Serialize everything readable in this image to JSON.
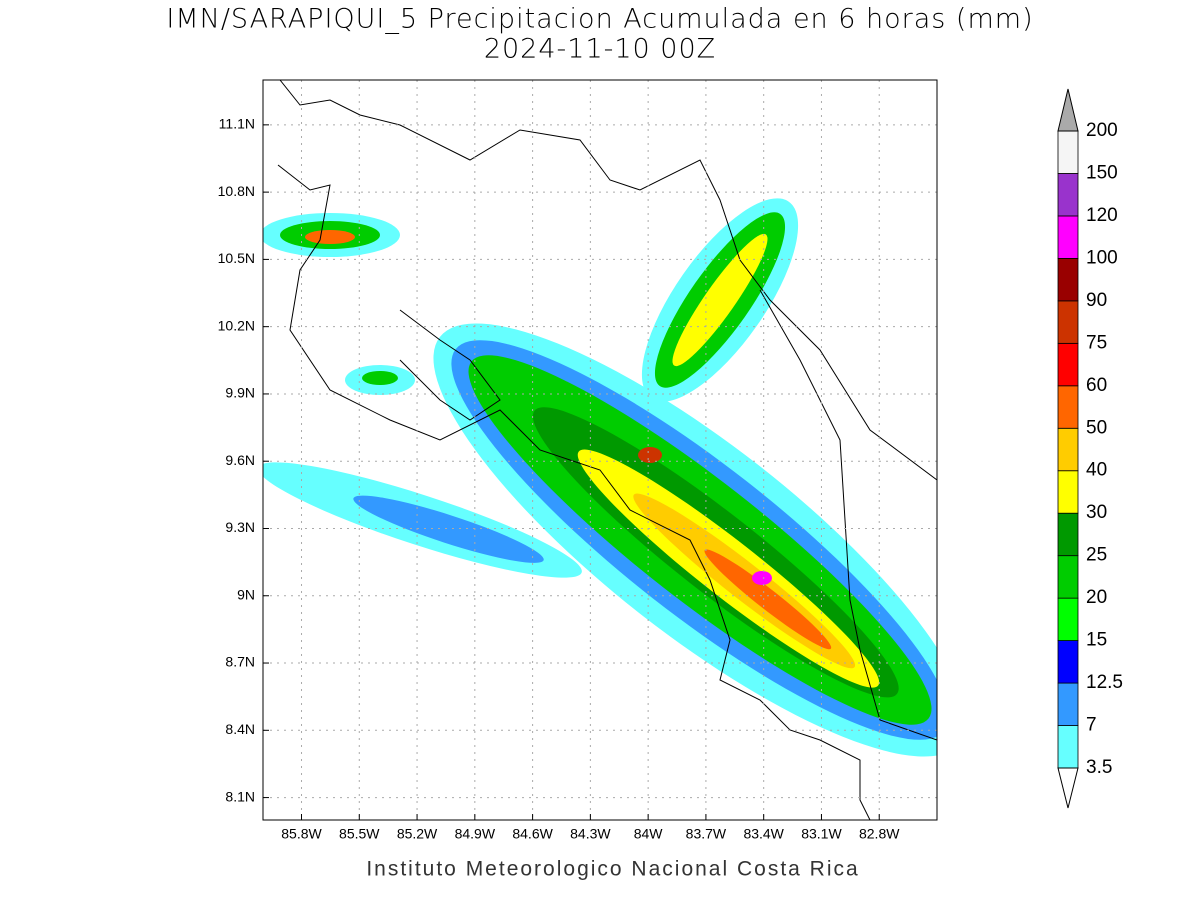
{
  "title": "IMN/SARAPIQUI_5 Precipitacion Acumulada en 6 horas (mm)",
  "subtitle": "2024-11-10 00Z",
  "footer": "Instituto Meteorologico Nacional Costa Rica",
  "map": {
    "xlim": [
      -86.0,
      -82.5
    ],
    "ylim": [
      8.0,
      11.3
    ],
    "xticks": [
      {
        "value": -85.8,
        "label": "85.8W"
      },
      {
        "value": -85.5,
        "label": "85.5W"
      },
      {
        "value": -85.2,
        "label": "85.2W"
      },
      {
        "value": -84.9,
        "label": "84.9W"
      },
      {
        "value": -84.6,
        "label": "84.6W"
      },
      {
        "value": -84.3,
        "label": "84.3W"
      },
      {
        "value": -84.0,
        "label": "84W"
      },
      {
        "value": -83.7,
        "label": "83.7W"
      },
      {
        "value": -83.4,
        "label": "83.4W"
      },
      {
        "value": -83.1,
        "label": "83.1W"
      },
      {
        "value": -82.8,
        "label": "82.8W"
      }
    ],
    "yticks": [
      {
        "value": 8.1,
        "label": "8.1N"
      },
      {
        "value": 8.4,
        "label": "8.4N"
      },
      {
        "value": 8.7,
        "label": "8.7N"
      },
      {
        "value": 9.0,
        "label": "9N"
      },
      {
        "value": 9.3,
        "label": "9.3N"
      },
      {
        "value": 9.6,
        "label": "9.6N"
      },
      {
        "value": 9.9,
        "label": "9.9N"
      },
      {
        "value": 10.2,
        "label": "10.2N"
      },
      {
        "value": 10.5,
        "label": "10.5N"
      },
      {
        "value": 10.8,
        "label": "10.8N"
      },
      {
        "value": 11.1,
        "label": "11.1N"
      }
    ]
  },
  "colorbar": {
    "levels": [
      3.5,
      7,
      12.5,
      15,
      20,
      25,
      30,
      40,
      50,
      60,
      75,
      90,
      100,
      120,
      150,
      200
    ],
    "colors": [
      "#66ffff",
      "#3399ff",
      "#0000ff",
      "#00ff00",
      "#00cc00",
      "#009900",
      "#ffff00",
      "#ffcc00",
      "#ff6600",
      "#ff0000",
      "#cc3300",
      "#990000",
      "#ff00ff",
      "#9933cc",
      "#f5f5f5"
    ],
    "under_color": "#ffffff",
    "over_color": "#aaaaaa"
  }
}
